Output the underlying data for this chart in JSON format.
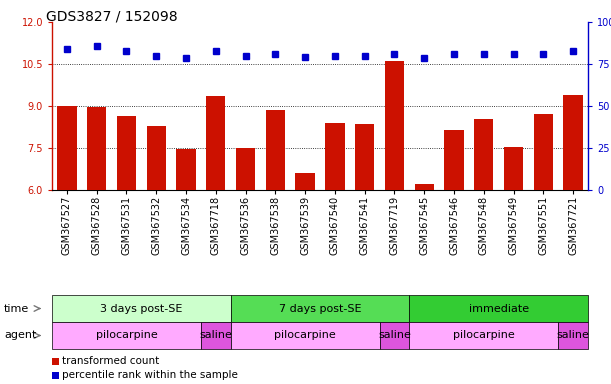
{
  "title": "GDS3827 / 152098",
  "samples": [
    "GSM367527",
    "GSM367528",
    "GSM367531",
    "GSM367532",
    "GSM367534",
    "GSM367718",
    "GSM367536",
    "GSM367538",
    "GSM367539",
    "GSM367540",
    "GSM367541",
    "GSM367719",
    "GSM367545",
    "GSM367546",
    "GSM367548",
    "GSM367549",
    "GSM367551",
    "GSM367721"
  ],
  "bar_values": [
    9.0,
    8.95,
    8.65,
    8.3,
    7.45,
    9.35,
    7.5,
    8.85,
    6.6,
    8.4,
    8.35,
    10.6,
    6.2,
    8.15,
    8.55,
    7.55,
    8.7,
    9.4
  ],
  "dot_values": [
    11.05,
    11.15,
    10.95,
    10.8,
    10.7,
    10.95,
    10.8,
    10.85,
    10.75,
    10.8,
    10.8,
    10.85,
    10.7,
    10.85,
    10.85,
    10.85,
    10.85,
    10.95
  ],
  "ylim": [
    6,
    12
  ],
  "ylim_right": [
    0,
    100
  ],
  "yticks_left": [
    6,
    7.5,
    9,
    10.5,
    12
  ],
  "yticks_right": [
    0,
    25,
    50,
    75,
    100
  ],
  "bar_color": "#cc1100",
  "dot_color": "#0000cc",
  "bar_bottom": 6,
  "time_groups": [
    {
      "label": "3 days post-SE",
      "start": 0,
      "end": 6,
      "color": "#ccffcc"
    },
    {
      "label": "7 days post-SE",
      "start": 6,
      "end": 12,
      "color": "#55dd55"
    },
    {
      "label": "immediate",
      "start": 12,
      "end": 18,
      "color": "#33cc33"
    }
  ],
  "agent_groups": [
    {
      "label": "pilocarpine",
      "start": 0,
      "end": 5,
      "color": "#ffaaff"
    },
    {
      "label": "saline",
      "start": 5,
      "end": 6,
      "color": "#dd55dd"
    },
    {
      "label": "pilocarpine",
      "start": 6,
      "end": 11,
      "color": "#ffaaff"
    },
    {
      "label": "saline",
      "start": 11,
      "end": 12,
      "color": "#dd55dd"
    },
    {
      "label": "pilocarpine",
      "start": 12,
      "end": 17,
      "color": "#ffaaff"
    },
    {
      "label": "saline",
      "start": 17,
      "end": 18,
      "color": "#dd55dd"
    }
  ],
  "legend_bar_label": "transformed count",
  "legend_dot_label": "percentile rank within the sample",
  "time_label": "time",
  "agent_label": "agent",
  "gridlines": [
    7.5,
    9.0,
    10.5
  ],
  "title_fontsize": 10,
  "tick_fontsize": 7,
  "label_fontsize": 8,
  "row_label_fontsize": 8,
  "legend_fontsize": 7.5
}
